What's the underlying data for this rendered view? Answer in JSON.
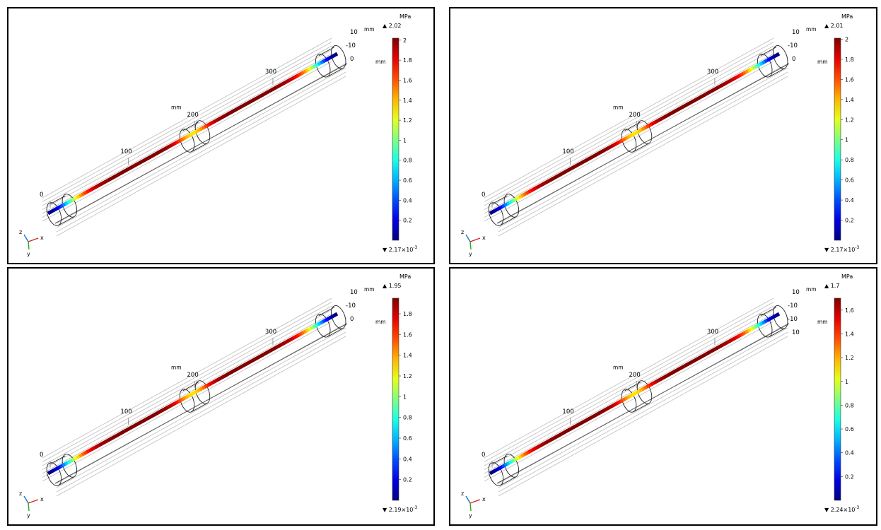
{
  "axis_unit": "mm",
  "colorbar_unit": "MPa",
  "triad": {
    "x": "x",
    "y": "y",
    "z": "z"
  },
  "panels": [
    {
      "max": "2.02",
      "min_base": "2.17×10",
      "min_exp": "-3",
      "ticks": [
        "2",
        "1.8",
        "1.6",
        "1.4",
        "1.2",
        "1",
        "0.8",
        "0.6",
        "0.4",
        "0.2"
      ],
      "tick_values": [
        2,
        1.8,
        1.6,
        1.4,
        1.2,
        1,
        0.8,
        0.6,
        0.4,
        0.2
      ],
      "scale_max": 2.02,
      "x_ticks": [
        "0",
        "100",
        "200",
        "300"
      ],
      "yz_ticks": [
        "10",
        "-10",
        "0"
      ]
    },
    {
      "max": "2.01",
      "min_base": "2.17×10",
      "min_exp": "-3",
      "ticks": [
        "2",
        "1.8",
        "1.6",
        "1.4",
        "1.2",
        "1",
        "0.8",
        "0.6",
        "0.4",
        "0.2"
      ],
      "tick_values": [
        2,
        1.8,
        1.6,
        1.4,
        1.2,
        1,
        0.8,
        0.6,
        0.4,
        0.2
      ],
      "scale_max": 2.01,
      "x_ticks": [
        "0",
        "100",
        "200",
        "300"
      ],
      "yz_ticks": [
        "10",
        "-10",
        "0"
      ]
    },
    {
      "max": "1.95",
      "min_base": "2.19×10",
      "min_exp": "-3",
      "ticks": [
        "1.8",
        "1.6",
        "1.4",
        "1.2",
        "1",
        "0.8",
        "0.6",
        "0.4",
        "0.2"
      ],
      "tick_values": [
        1.8,
        1.6,
        1.4,
        1.2,
        1,
        0.8,
        0.6,
        0.4,
        0.2
      ],
      "scale_max": 1.95,
      "x_ticks": [
        "0",
        "100",
        "200",
        "300"
      ],
      "yz_ticks": [
        "10",
        "-10",
        "0"
      ]
    },
    {
      "max": "1.7",
      "min_base": "2.24×10",
      "min_exp": "-3",
      "ticks": [
        "1.6",
        "1.4",
        "1.2",
        "1",
        "0.8",
        "0.6",
        "0.4",
        "0.2"
      ],
      "tick_values": [
        1.6,
        1.4,
        1.2,
        1,
        0.8,
        0.6,
        0.4,
        0.2
      ],
      "scale_max": 1.7,
      "x_ticks": [
        "0",
        "100",
        "200",
        "300"
      ],
      "yz_ticks": [
        "10",
        "-10",
        "-10",
        "10"
      ]
    }
  ]
}
